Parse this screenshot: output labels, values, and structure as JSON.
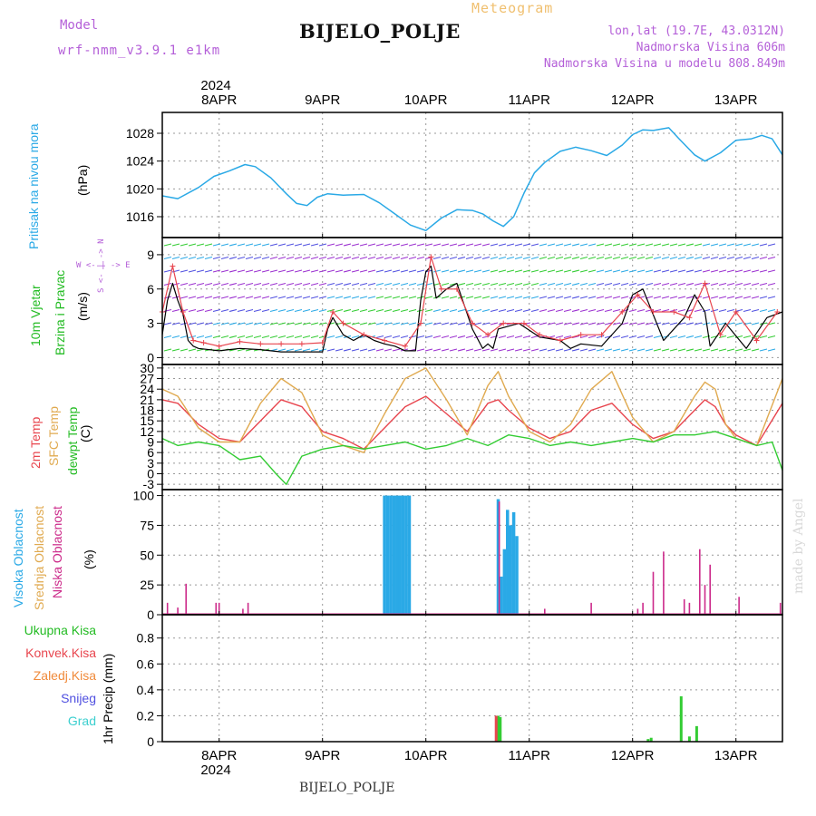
{
  "header": {
    "meteogram": "Meteogram",
    "title": "BIJELO_POLJE",
    "model_label": "Model",
    "model_name": "wrf-nmm_v3.9.1 e1km",
    "coords": "lon,lat (19.7E, 43.0312N)",
    "elevation": "Nadmorska Visina 606m",
    "model_elevation": "Nadmorska Visina u modelu 808.849m"
  },
  "footer": {
    "title": "BIJELO_POLJE",
    "credit": "made by Angel"
  },
  "time_axis": {
    "year": "2024",
    "labels": [
      "8APR",
      "9APR",
      "10APR",
      "11APR",
      "12APR",
      "13APR"
    ],
    "label_days": [
      1,
      2,
      3,
      4,
      5,
      6
    ],
    "xlim_days": [
      0.45,
      6.45
    ]
  },
  "colors": {
    "pressure": "#2aa9e6",
    "wind_speed": "#000000",
    "wind_gust": "#e8454e",
    "t2m": "#e8454e",
    "sfc": "#e0aa50",
    "dew": "#33cc33",
    "high_cloud": "#2aa9e6",
    "mid_cloud": "#e0aa50",
    "low_cloud": "#cc2a8a",
    "total_precip": "#33cc33",
    "conv_precip": "#e8454e",
    "frozen": "#f08a3a",
    "snow": "#5050e0",
    "hail": "#3ccfcf"
  },
  "panel_labels": {
    "pressure": {
      "title": "Pritisak na nivou mora",
      "unit": "(hPa)"
    },
    "wind": {
      "title1": "10m Vjetar",
      "title2": "Brzina i Pravac",
      "unit": "(m/s)",
      "compass": "W <- | -> E",
      "compass2": "S <- | -> N"
    },
    "temp": {
      "t1": "2m Temp",
      "t2": "SFC Temp",
      "t3": "dewpt Temp",
      "unit": "(C)"
    },
    "cloud": {
      "c1": "Visoka Oblacnost",
      "c2": "Srednja Oblacnost",
      "c3": "Niska Oblacnost",
      "unit": "(%)"
    },
    "precip": {
      "p1": "Ukupna Kisa",
      "p2": "Konvek.Kisa",
      "p3": "Zaledj.Kisa",
      "p4": "Snijeg",
      "p5": "Grad",
      "unit": "1hr Precip (mm)"
    }
  },
  "chart_data": [
    {
      "type": "line",
      "id": "pressure",
      "ylabel": "(hPa)",
      "yticks": [
        1016,
        1020,
        1024,
        1028
      ],
      "ylim": [
        1013,
        1031
      ],
      "series": [
        {
          "name": "Pritisak na nivou mora",
          "x": [
            0.45,
            0.6,
            0.8,
            0.95,
            1.1,
            1.25,
            1.35,
            1.5,
            1.65,
            1.75,
            1.85,
            1.95,
            2.05,
            2.2,
            2.4,
            2.55,
            2.7,
            2.85,
            3.0,
            3.15,
            3.3,
            3.45,
            3.55,
            3.65,
            3.75,
            3.85,
            3.95,
            4.05,
            4.15,
            4.3,
            4.45,
            4.6,
            4.75,
            4.9,
            5.0,
            5.1,
            5.2,
            5.35,
            5.45,
            5.6,
            5.7,
            5.85,
            6.0,
            6.15,
            6.25,
            6.35,
            6.45
          ],
          "y": [
            1019,
            1018.6,
            1020.2,
            1021.8,
            1022.6,
            1023.5,
            1023.2,
            1021.6,
            1019.3,
            1017.9,
            1017.6,
            1018.8,
            1019.3,
            1019.1,
            1019.2,
            1018,
            1016.4,
            1014.8,
            1014,
            1015.8,
            1017,
            1016.9,
            1016.4,
            1015.4,
            1014.6,
            1016,
            1019.4,
            1022.3,
            1023.8,
            1025.4,
            1026,
            1025.5,
            1024.8,
            1026.3,
            1027.8,
            1028.5,
            1028.4,
            1028.8,
            1027.2,
            1024.9,
            1024,
            1025.2,
            1027,
            1027.2,
            1027.7,
            1027.2,
            1024.9
          ]
        }
      ]
    },
    {
      "type": "line",
      "id": "wind",
      "ylabel": "(m/s)",
      "yticks": [
        0,
        3,
        6,
        9
      ],
      "ylim": [
        -0.6,
        10.5
      ],
      "series": [
        {
          "name": "speed",
          "x": [
            0.45,
            0.5,
            0.55,
            0.6,
            0.65,
            0.7,
            0.75,
            0.8,
            1.0,
            1.2,
            1.4,
            1.6,
            1.8,
            2.0,
            2.05,
            2.1,
            2.2,
            2.3,
            2.4,
            2.5,
            2.6,
            2.7,
            2.8,
            2.9,
            2.95,
            3.0,
            3.05,
            3.1,
            3.2,
            3.3,
            3.45,
            3.55,
            3.6,
            3.65,
            3.7,
            3.9,
            4.1,
            4.3,
            4.4,
            4.5,
            4.7,
            4.9,
            5.0,
            5.1,
            5.3,
            5.5,
            5.6,
            5.7,
            5.75,
            5.9,
            6.1,
            6.3,
            6.45
          ],
          "y": [
            2,
            5,
            6.5,
            5,
            3.8,
            1.5,
            1,
            0.8,
            0.6,
            0.8,
            0.7,
            0.5,
            0.5,
            0.5,
            2.5,
            3.5,
            2,
            1.5,
            2,
            1.5,
            1.2,
            1,
            0.6,
            0.6,
            5,
            7.5,
            8,
            5.2,
            6,
            6.5,
            2.5,
            0.8,
            1.2,
            0.8,
            2.5,
            3,
            1.8,
            1.5,
            0.8,
            1.2,
            1,
            3,
            5.5,
            6,
            1.5,
            3.5,
            5.5,
            4,
            1,
            3,
            0.8,
            3.5,
            4
          ]
        },
        {
          "name": "gust",
          "x": [
            0.45,
            0.55,
            0.65,
            0.75,
            0.85,
            1.0,
            1.2,
            1.4,
            1.6,
            1.8,
            2.0,
            2.1,
            2.2,
            2.4,
            2.6,
            2.8,
            2.95,
            3.05,
            3.15,
            3.3,
            3.45,
            3.6,
            3.75,
            3.95,
            4.1,
            4.3,
            4.5,
            4.7,
            4.9,
            5.05,
            5.2,
            5.4,
            5.55,
            5.7,
            5.85,
            6.0,
            6.2,
            6.4
          ],
          "y": [
            4,
            8,
            4,
            1.5,
            1.3,
            1,
            1.4,
            1.2,
            1.2,
            1.2,
            1.3,
            4,
            3,
            2,
            1.5,
            1,
            3,
            8.8,
            6,
            6,
            3,
            2,
            3,
            3,
            2,
            1.5,
            2,
            2,
            4,
            5.5,
            4,
            4,
            3.5,
            6.5,
            2,
            4,
            1.5,
            4
          ]
        }
      ]
    },
    {
      "type": "line",
      "id": "temp",
      "ylabel": "(C)",
      "yticks": [
        -3,
        0,
        3,
        6,
        9,
        12,
        15,
        18,
        21,
        24,
        27,
        30
      ],
      "ylim": [
        -4.5,
        31
      ],
      "series": [
        {
          "name": "2m Temp",
          "x": [
            0.45,
            0.6,
            0.8,
            1.0,
            1.2,
            1.4,
            1.6,
            1.8,
            2.0,
            2.2,
            2.4,
            2.6,
            2.8,
            3.0,
            3.2,
            3.4,
            3.6,
            3.7,
            3.8,
            4.0,
            4.2,
            4.4,
            4.6,
            4.8,
            5.0,
            5.2,
            5.4,
            5.6,
            5.7,
            5.8,
            5.9,
            6.0,
            6.2,
            6.45
          ],
          "y": [
            21,
            20,
            14,
            10,
            9,
            15,
            21,
            19,
            12,
            10,
            7,
            13,
            19,
            22,
            17,
            12,
            20,
            21,
            18,
            13,
            10,
            12,
            18,
            20,
            14,
            10,
            12,
            18,
            21,
            19,
            14,
            11,
            8,
            20
          ]
        },
        {
          "name": "SFC Temp",
          "x": [
            0.45,
            0.6,
            0.8,
            1.0,
            1.2,
            1.4,
            1.6,
            1.8,
            2.0,
            2.2,
            2.4,
            2.6,
            2.8,
            3.0,
            3.2,
            3.4,
            3.6,
            3.7,
            3.8,
            4.0,
            4.2,
            4.4,
            4.6,
            4.8,
            5.0,
            5.2,
            5.4,
            5.6,
            5.7,
            5.8,
            5.9,
            6.0,
            6.2,
            6.45
          ],
          "y": [
            24,
            22,
            13,
            9,
            9,
            20,
            27,
            23,
            11,
            8,
            6,
            17,
            27,
            30,
            21,
            11,
            25,
            29,
            22,
            12,
            9,
            14,
            24,
            29,
            16,
            9,
            12,
            22,
            26,
            24,
            14,
            10,
            8,
            27
          ]
        },
        {
          "name": "dewpt Temp",
          "x": [
            0.45,
            0.6,
            0.8,
            1.0,
            1.2,
            1.4,
            1.55,
            1.65,
            1.8,
            2.0,
            2.2,
            2.4,
            2.6,
            2.8,
            3.0,
            3.2,
            3.4,
            3.6,
            3.8,
            4.0,
            4.2,
            4.4,
            4.6,
            4.8,
            5.0,
            5.2,
            5.4,
            5.6,
            5.8,
            6.0,
            6.2,
            6.35,
            6.45
          ],
          "y": [
            10,
            8,
            9,
            8,
            4,
            5,
            0,
            -3,
            5,
            7,
            8,
            7,
            8,
            9,
            7,
            8,
            10,
            8,
            11,
            10,
            8,
            9,
            8,
            9,
            10,
            9,
            11,
            11,
            12,
            10,
            8,
            9,
            1
          ]
        }
      ]
    },
    {
      "type": "bar",
      "id": "cloud",
      "ylabel": "(%)",
      "yticks": [
        0,
        25,
        50,
        75,
        100
      ],
      "ylim": [
        0,
        105
      ],
      "series": [
        {
          "name": "Visoka Oblacnost",
          "x": [
            2.6,
            2.63,
            2.66,
            2.69,
            2.72,
            2.75,
            2.78,
            2.81,
            2.84,
            3.7,
            3.73,
            3.76,
            3.79,
            3.82,
            3.85,
            3.88
          ],
          "y": [
            100,
            100,
            100,
            100,
            100,
            100,
            100,
            100,
            100,
            97,
            32,
            55,
            88,
            75,
            86,
            66
          ]
        },
        {
          "name": "Niska Oblacnost",
          "x": [
            0.5,
            0.6,
            0.68,
            0.72,
            0.97,
            1.0,
            1.23,
            1.28,
            3.71,
            4.15,
            4.6,
            5.05,
            5.1,
            5.2,
            5.3,
            5.5,
            5.55,
            5.65,
            5.7,
            5.75,
            6.03,
            6.43
          ],
          "y": [
            10,
            6,
            26,
            1,
            10,
            10,
            5,
            10,
            95,
            5,
            10,
            5,
            10,
            36,
            53,
            13,
            10,
            55,
            25,
            42,
            15,
            10
          ]
        }
      ]
    },
    {
      "type": "bar",
      "id": "precip",
      "ylabel": "1hr Precip (mm)",
      "yticks": [
        0,
        0.2,
        0.4,
        0.6,
        0.8
      ],
      "ylim": [
        0,
        0.98
      ],
      "series": [
        {
          "name": "Ukupna Kisa",
          "x": [
            3.7,
            3.72,
            5.15,
            5.18,
            5.47,
            5.55,
            5.62
          ],
          "y": [
            0.2,
            0.19,
            0.02,
            0.03,
            0.35,
            0.04,
            0.12
          ]
        },
        {
          "name": "Konvek.Kisa",
          "x": [
            3.68
          ],
          "y": [
            0.2
          ]
        }
      ]
    }
  ]
}
